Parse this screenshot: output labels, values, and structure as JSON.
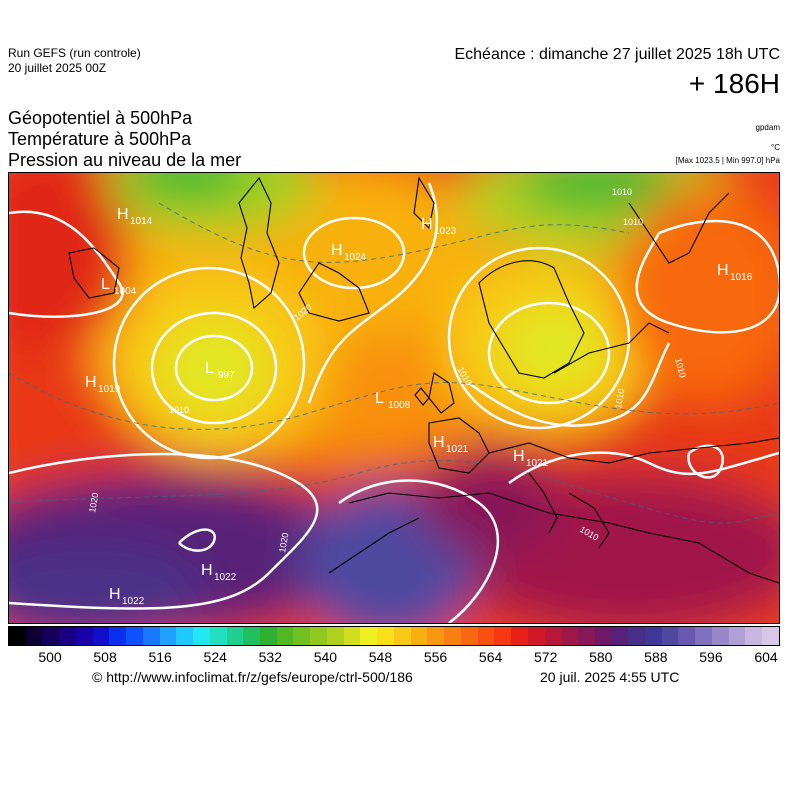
{
  "header": {
    "run_name": "Run GEFS (run controle)",
    "run_date": "20 juillet 2025 00Z",
    "valid_time": "Echéance : dimanche 27 juillet 2025 18h UTC",
    "lead_time": "+ 186H"
  },
  "parameters": [
    "Géopotentiel à 500hPa",
    "Température à 500hPa",
    "Pression au niveau de la mer"
  ],
  "units": {
    "geopotential": "gpdam",
    "temperature": "°C",
    "pressure": "[Max 1023.5 | Min 997.0] hPa"
  },
  "pressure_centers": [
    {
      "type": "H",
      "value": "1014"
    },
    {
      "type": "L",
      "value": "1004"
    },
    {
      "type": "H",
      "value": "1024"
    },
    {
      "type": "H",
      "value": "1023"
    },
    {
      "type": "L",
      "value": "997"
    },
    {
      "type": "H",
      "value": "1019"
    },
    {
      "type": "L",
      "value": "1008"
    },
    {
      "type": "H",
      "value": "1021"
    },
    {
      "type": "H",
      "value": "1021"
    },
    {
      "type": "H",
      "value": "1016"
    },
    {
      "type": "H",
      "value": "1022"
    },
    {
      "type": "H",
      "value": "1022"
    }
  ],
  "isobar_labels": [
    "1020",
    "1010",
    "1010",
    "1010",
    "1010",
    "1010",
    "1020",
    "1020",
    "1010",
    "1010"
  ],
  "colorbar": {
    "ticks": [
      "500",
      "508",
      "516",
      "524",
      "532",
      "540",
      "548",
      "556",
      "564",
      "572",
      "580",
      "588",
      "596",
      "604"
    ],
    "colors": [
      "#000000",
      "#0d0030",
      "#15005a",
      "#1a0080",
      "#1a00a8",
      "#1010cc",
      "#0a30ee",
      "#1050ff",
      "#1a78ff",
      "#20a0ff",
      "#20c8ff",
      "#20e8f0",
      "#20e0c0",
      "#20d090",
      "#20c060",
      "#30b030",
      "#50b820",
      "#70c020",
      "#90c820",
      "#b0d020",
      "#d0e020",
      "#f0f020",
      "#f8e018",
      "#f8c818",
      "#f8b010",
      "#f89810",
      "#f88010",
      "#f86810",
      "#f85010",
      "#f83810",
      "#e82018",
      "#d01828",
      "#b81838",
      "#a01848",
      "#881858",
      "#701868",
      "#582078",
      "#483088",
      "#403898",
      "#5048a0",
      "#6858b0",
      "#8070c0",
      "#9888c8",
      "#b0a0d8",
      "#c8b8e0",
      "#d8c8e8"
    ]
  },
  "footer": {
    "credit": "© http://www.infoclimat.fr/z/gefs/europe/ctrl-500/186",
    "timestamp": "20 juil. 2025  4:55 UTC"
  }
}
